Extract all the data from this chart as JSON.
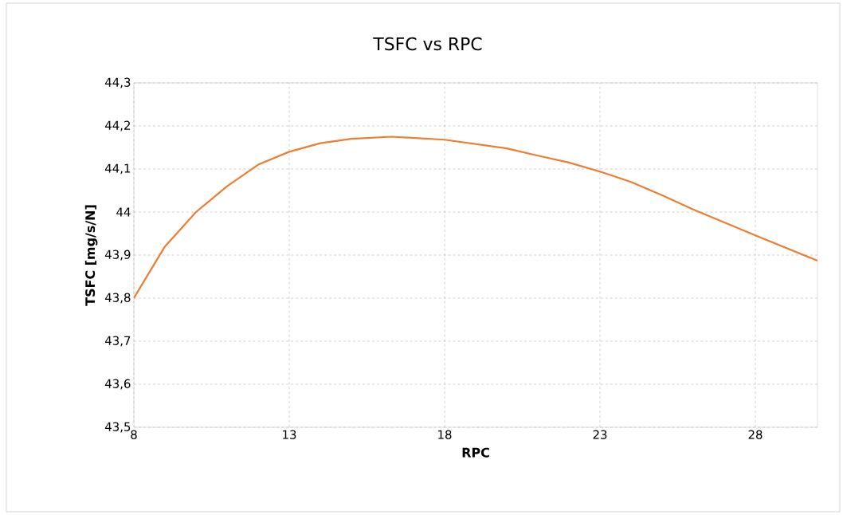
{
  "chart_data": {
    "type": "line",
    "title": "TSFC vs RPC",
    "xlabel": "RPC",
    "ylabel": "TSFC [mg/s/N]",
    "x": [
      8,
      9,
      10,
      11,
      12,
      13,
      14,
      15,
      16.3,
      18,
      20,
      21,
      22,
      23,
      24,
      25,
      26,
      28,
      30
    ],
    "series": [
      {
        "color": "#ed7d31",
        "values": [
          43.8,
          43.92,
          44.0,
          44.06,
          44.11,
          44.14,
          44.16,
          44.17,
          44.175,
          44.168,
          44.148,
          44.131,
          44.115,
          44.094,
          44.07,
          44.039,
          44.006,
          43.946,
          43.887
        ]
      }
    ],
    "xlim": [
      8,
      30
    ],
    "xticks": [
      8,
      13,
      18,
      23,
      28
    ],
    "ylim": [
      43.5,
      44.3
    ],
    "yticks": [
      {
        "value": 43.5,
        "label": "43,5"
      },
      {
        "value": 43.6,
        "label": "43,6"
      },
      {
        "value": 43.7,
        "label": "43,7"
      },
      {
        "value": 43.8,
        "label": "43,8"
      },
      {
        "value": 43.9,
        "label": "43,9"
      },
      {
        "value": 44,
        "label": "44"
      },
      {
        "value": 44.1,
        "label": "44,1"
      },
      {
        "value": 44.2,
        "label": "44,2"
      },
      {
        "value": 44.3,
        "label": "44,3"
      }
    ],
    "grid": true,
    "marker": "none",
    "line_style": "solid"
  }
}
